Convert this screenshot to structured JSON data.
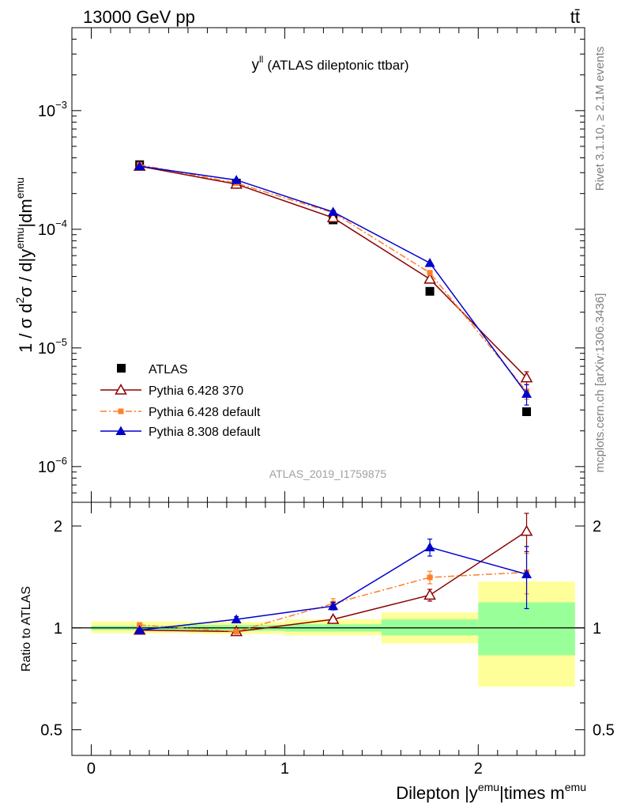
{
  "header": {
    "left": "13000 GeV pp",
    "right": "tt̄"
  },
  "side_labels": {
    "top": "Rivet 3.1.10, ≥ 2.1M events",
    "bottom": "mcplots.cern.ch [arXiv:1306.3436]"
  },
  "watermark": "ATLAS_2019_I1759875",
  "chart_data": [
    {
      "type": "scatter",
      "panel": "main",
      "title": "y^ll (ATLAS dileptonic ttbar)",
      "title_parts": {
        "base": "y",
        "sup": "ll",
        "rest": "(ATLAS dileptonic ttbar)"
      },
      "ylabel": "1 / σ d²σ / d|y^emu|dm^emu",
      "ylabel_parts": {
        "p1": "1 / σ  d",
        "s1": "2",
        "p2": "σ / d|y",
        "s2": "emu",
        "p3": "|dm",
        "s3": "emu"
      },
      "yscale": "log",
      "ylim": [
        5e-07,
        0.005
      ],
      "xlim": [
        -0.1,
        2.55
      ],
      "yticks": [
        {
          "v": 1e-06,
          "base": "10",
          "exp": "−6"
        },
        {
          "v": 1e-05,
          "base": "10",
          "exp": "−5"
        },
        {
          "v": 0.0001,
          "base": "10",
          "exp": "−4"
        },
        {
          "v": 0.001,
          "base": "10",
          "exp": "−3"
        }
      ],
      "legend_position": "lower-left",
      "series": [
        {
          "name": "ATLAS",
          "color": "#000000",
          "marker": "square-filled",
          "line": "none",
          "x": [
            0.25,
            0.75,
            1.25,
            1.75,
            2.25
          ],
          "y": [
            0.00035,
            0.000245,
            0.00012,
            3e-05,
            2.9e-06
          ]
        },
        {
          "name": "Pythia 6.428 370",
          "color": "#8b0000",
          "marker": "triangle-open",
          "line": "solid",
          "x": [
            0.25,
            0.75,
            1.25,
            1.75,
            2.25
          ],
          "y": [
            0.00034,
            0.00024,
            0.000125,
            3.8e-05,
            5.6e-06
          ],
          "err_y": [
            0,
            0,
            0,
            0,
            7e-07
          ]
        },
        {
          "name": "Pythia 6.428 default",
          "color": "#ff7f27",
          "marker": "square-filled-small",
          "line": "dashdot",
          "x": [
            0.25,
            0.75,
            1.25,
            1.75,
            2.25
          ],
          "y": [
            0.00035,
            0.000245,
            0.000138,
            4.3e-05,
            4.3e-06
          ],
          "err_y": [
            0,
            0,
            0,
            0,
            6e-07
          ]
        },
        {
          "name": "Pythia 8.308 default",
          "color": "#0000cd",
          "marker": "triangle-filled",
          "line": "solid",
          "x": [
            0.25,
            0.75,
            1.25,
            1.75,
            2.25
          ],
          "y": [
            0.00034,
            0.00026,
            0.00014,
            5.2e-05,
            4.1e-06
          ],
          "err_y": [
            0,
            0,
            0,
            0,
            8e-07
          ]
        }
      ]
    },
    {
      "type": "scatter",
      "panel": "ratio",
      "ylabel": "Ratio to ATLAS",
      "xlabel": "Dilepton |y^emu|times m^emu",
      "xlabel_parts": {
        "p1": "Dilepton |y",
        "s1": "emu",
        "p2": "|times m",
        "s2": "emu"
      },
      "yscale": "log",
      "ylim": [
        0.42,
        2.35
      ],
      "xlim": [
        -0.1,
        2.55
      ],
      "xticks": [
        {
          "v": 0,
          "label": "0"
        },
        {
          "v": 1,
          "label": "1"
        },
        {
          "v": 2,
          "label": "2"
        }
      ],
      "yticks": [
        {
          "v": 0.5,
          "label": "0.5"
        },
        {
          "v": 1,
          "label": "1"
        },
        {
          "v": 2,
          "label": "2"
        }
      ],
      "bands": [
        {
          "x0": 0.0,
          "x1": 0.5,
          "inner": [
            0.985,
            1.015
          ],
          "outer": [
            0.965,
            1.045
          ]
        },
        {
          "x0": 0.5,
          "x1": 1.0,
          "inner": [
            0.98,
            1.02
          ],
          "outer": [
            0.96,
            1.04
          ]
        },
        {
          "x0": 1.0,
          "x1": 1.5,
          "inner": [
            0.975,
            1.025
          ],
          "outer": [
            0.95,
            1.06
          ]
        },
        {
          "x0": 1.5,
          "x1": 2.0,
          "inner": [
            0.95,
            1.06
          ],
          "outer": [
            0.9,
            1.11
          ]
        },
        {
          "x0": 2.0,
          "x1": 2.5,
          "inner": [
            0.83,
            1.19
          ],
          "outer": [
            0.67,
            1.37
          ]
        }
      ],
      "series": [
        {
          "name": "Pythia 6.428 370",
          "color": "#8b0000",
          "marker": "triangle-open",
          "line": "solid",
          "x": [
            0.25,
            0.75,
            1.25,
            1.75,
            2.25
          ],
          "y": [
            0.985,
            0.975,
            1.06,
            1.25,
            1.93
          ],
          "err_y": [
            0,
            0,
            0.02,
            0.05,
            0.25
          ]
        },
        {
          "name": "Pythia 6.428 default",
          "color": "#ff7f27",
          "marker": "square-filled-small",
          "line": "dashdot",
          "x": [
            0.25,
            0.75,
            1.25,
            1.75,
            2.25
          ],
          "y": [
            1.02,
            0.975,
            1.18,
            1.41,
            1.46
          ],
          "err_y": [
            0.01,
            0.01,
            0.04,
            0.06,
            0.2
          ]
        },
        {
          "name": "Pythia 8.308 default",
          "color": "#0000cd",
          "marker": "triangle-filled",
          "line": "solid",
          "x": [
            0.25,
            0.75,
            1.25,
            1.75,
            2.25
          ],
          "y": [
            0.985,
            1.06,
            1.16,
            1.73,
            1.44
          ],
          "err_y": [
            0.01,
            0.02,
            0.03,
            0.1,
            0.3
          ]
        }
      ]
    }
  ]
}
